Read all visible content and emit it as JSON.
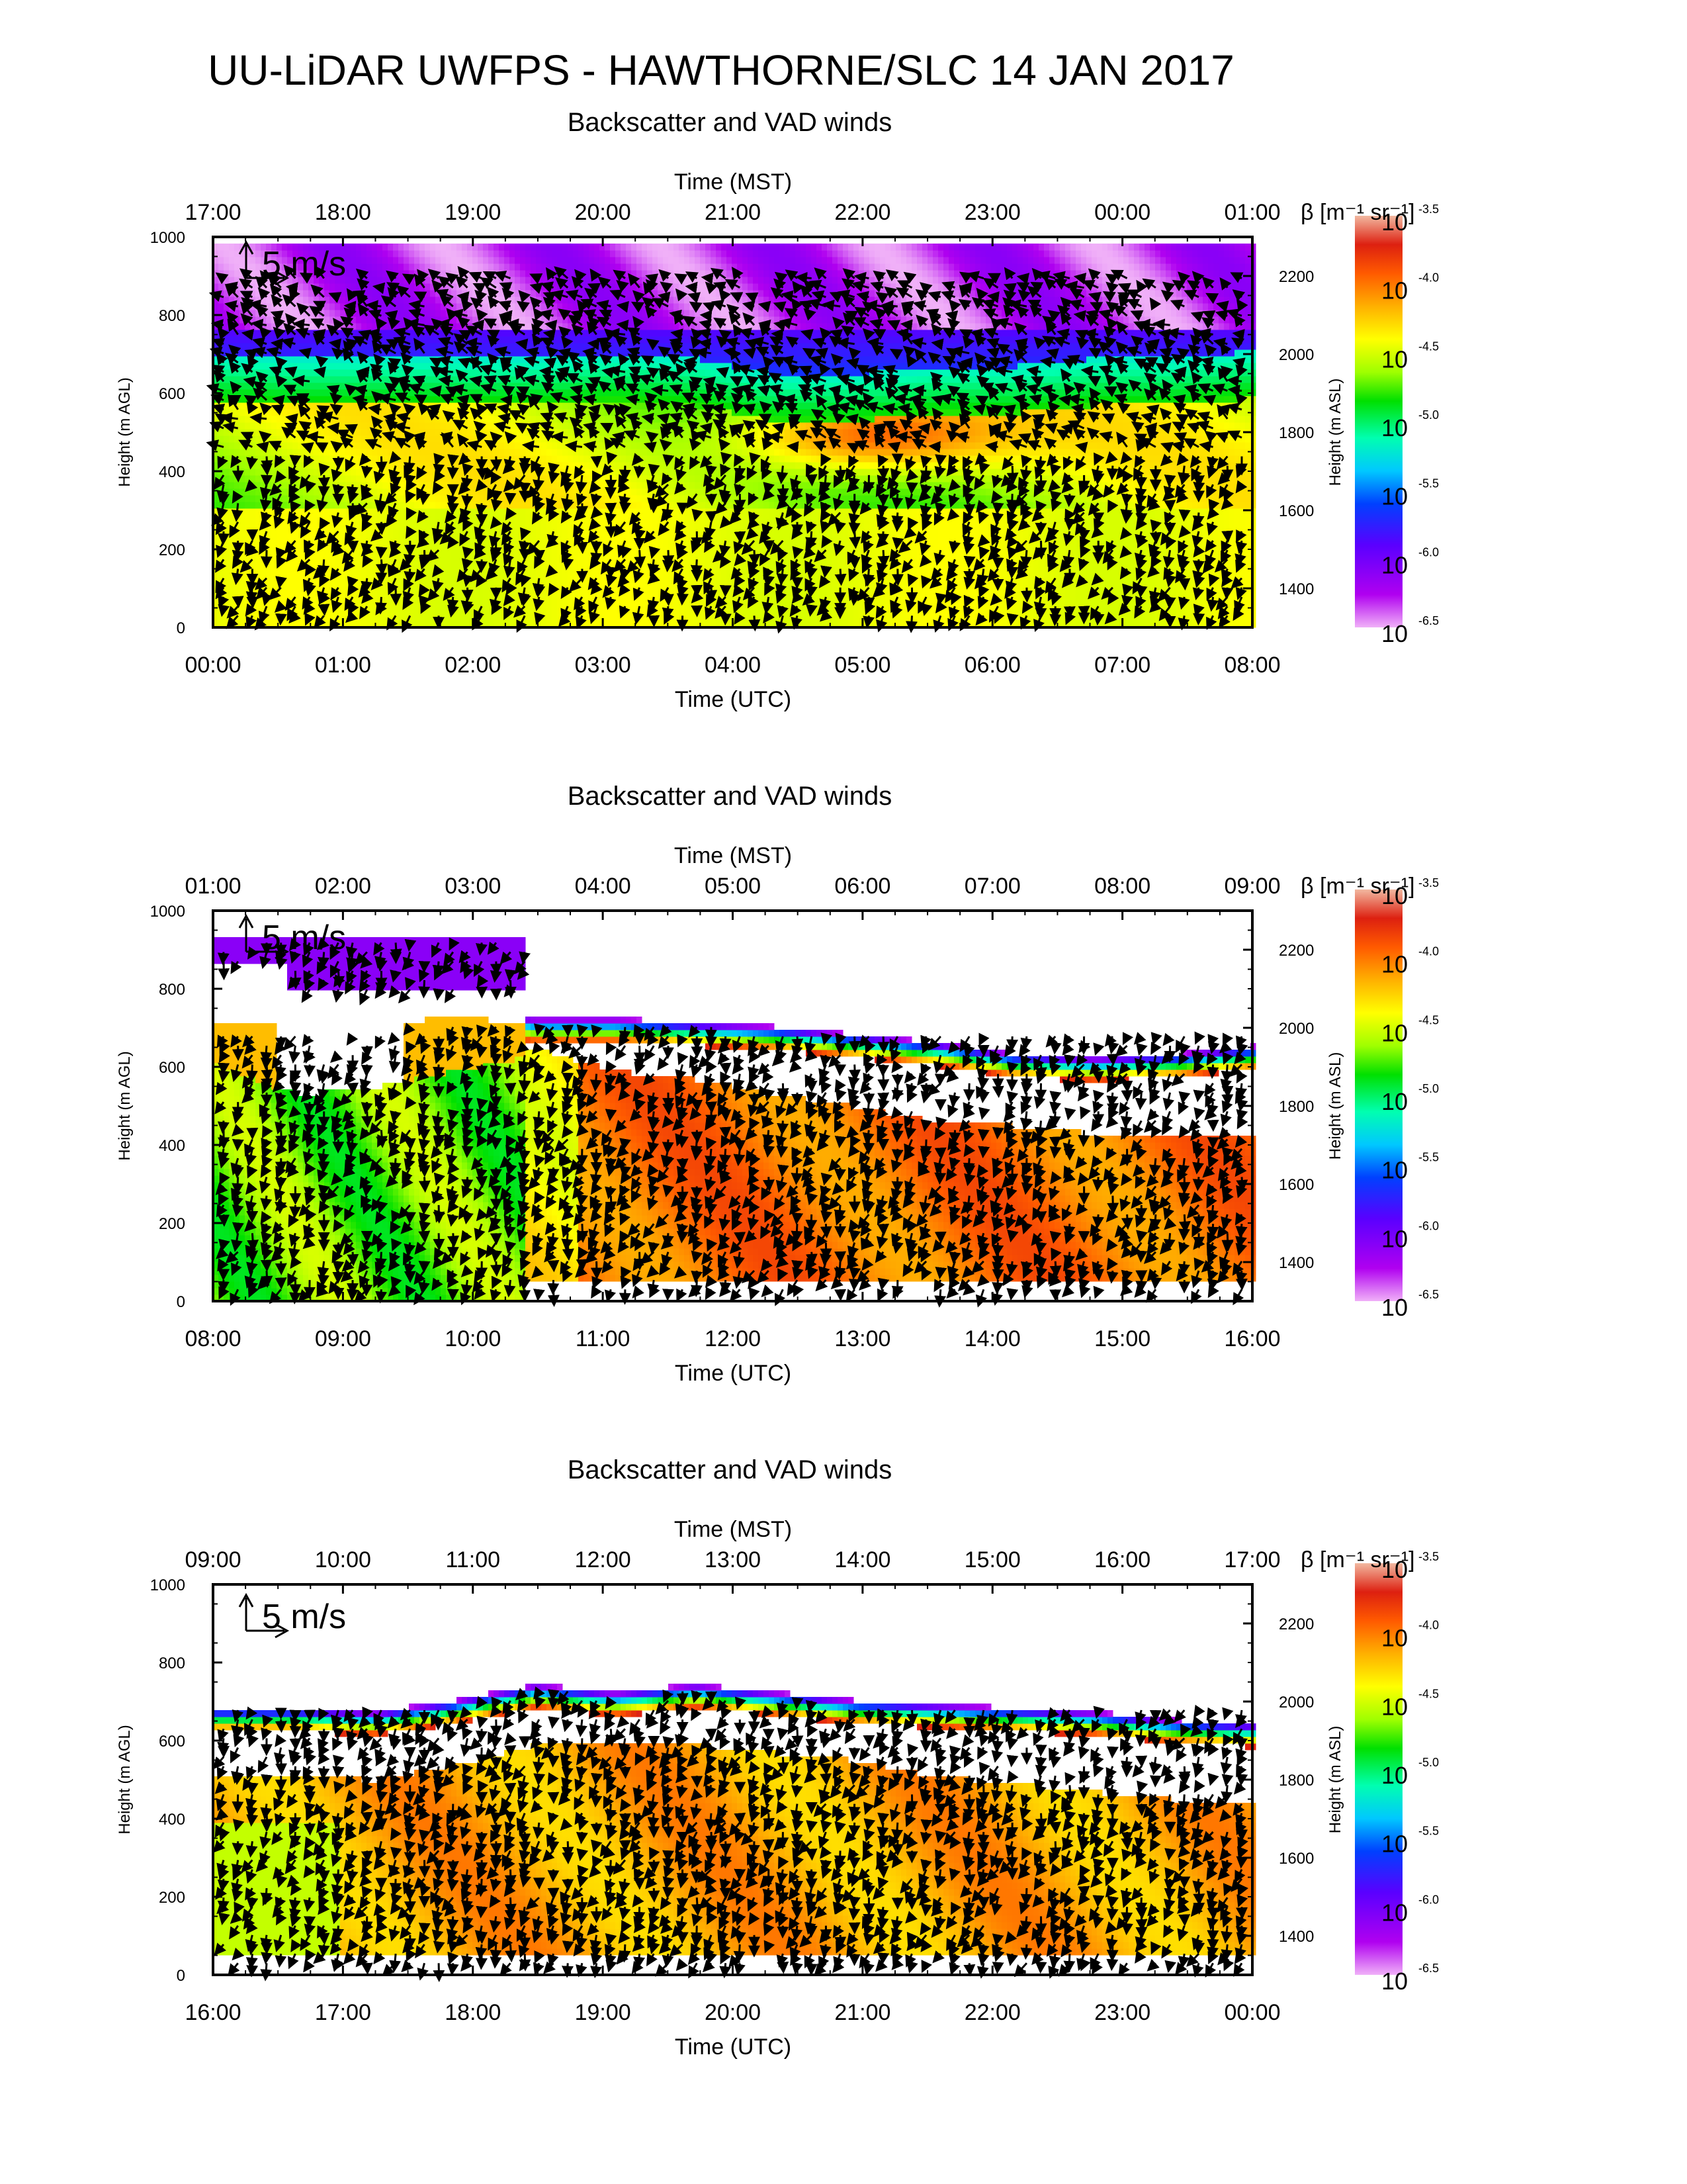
{
  "page": {
    "title": "UU-LiDAR UWFPS - HAWTHORNE/SLC 14 JAN 2017"
  },
  "colors": {
    "colorbar": [
      "#ee82ee",
      "#9400d3",
      "#6a00ff",
      "#0000ff",
      "#00c8ff",
      "#00ff80",
      "#00e000",
      "#7fff00",
      "#ffff00",
      "#ffa500",
      "#ff5a00",
      "#dd2200",
      "#f0a080"
    ],
    "arrow": "#000000"
  },
  "panels": [
    {
      "title": "Backscatter and VAD winds",
      "top_axis_label": "Time (MST)",
      "bottom_axis_label": "Time (UTC)",
      "left_axis_label": "Height (m AGL)",
      "right_axis_label": "Height (m ASL)",
      "top_ticks": [
        "17:00",
        "18:00",
        "19:00",
        "20:00",
        "21:00",
        "22:00",
        "23:00",
        "00:00",
        "01:00"
      ],
      "bottom_ticks": [
        "00:00",
        "01:00",
        "02:00",
        "03:00",
        "04:00",
        "05:00",
        "06:00",
        "07:00",
        "08:00"
      ],
      "left_ticks": [
        "0",
        "200",
        "400",
        "600",
        "800",
        "1000"
      ],
      "right_ticks": [
        "1400",
        "1600",
        "1800",
        "2000",
        "2200"
      ],
      "scale_label": "5 m/s",
      "colorbar_title": "β [m⁻¹ sr⁻¹]",
      "colorbar_ticks": [
        {
          "base": "10",
          "exp": "-3.5"
        },
        {
          "base": "10",
          "exp": "-4.0"
        },
        {
          "base": "10",
          "exp": "-4.5"
        },
        {
          "base": "10",
          "exp": "-5.0"
        },
        {
          "base": "10",
          "exp": "-5.5"
        },
        {
          "base": "10",
          "exp": "-6.0"
        },
        {
          "base": "10",
          "exp": "-6.5"
        }
      ]
    },
    {
      "title": "Backscatter and VAD winds",
      "top_axis_label": "Time (MST)",
      "bottom_axis_label": "Time (UTC)",
      "left_axis_label": "Height (m AGL)",
      "right_axis_label": "Height (m ASL)",
      "top_ticks": [
        "01:00",
        "02:00",
        "03:00",
        "04:00",
        "05:00",
        "06:00",
        "07:00",
        "08:00",
        "09:00"
      ],
      "bottom_ticks": [
        "08:00",
        "09:00",
        "10:00",
        "11:00",
        "12:00",
        "13:00",
        "14:00",
        "15:00",
        "16:00"
      ],
      "left_ticks": [
        "0",
        "200",
        "400",
        "600",
        "800",
        "1000"
      ],
      "right_ticks": [
        "1400",
        "1600",
        "1800",
        "2000",
        "2200"
      ],
      "scale_label": "5 m/s",
      "colorbar_title": "β [m⁻¹ sr⁻¹]",
      "colorbar_ticks": [
        {
          "base": "10",
          "exp": "-3.5"
        },
        {
          "base": "10",
          "exp": "-4.0"
        },
        {
          "base": "10",
          "exp": "-4.5"
        },
        {
          "base": "10",
          "exp": "-5.0"
        },
        {
          "base": "10",
          "exp": "-5.5"
        },
        {
          "base": "10",
          "exp": "-6.0"
        },
        {
          "base": "10",
          "exp": "-6.5"
        }
      ]
    },
    {
      "title": "Backscatter and VAD winds",
      "top_axis_label": "Time (MST)",
      "bottom_axis_label": "Time (UTC)",
      "left_axis_label": "Height (m AGL)",
      "right_axis_label": "Height (m ASL)",
      "top_ticks": [
        "09:00",
        "10:00",
        "11:00",
        "12:00",
        "13:00",
        "14:00",
        "15:00",
        "16:00",
        "17:00"
      ],
      "bottom_ticks": [
        "16:00",
        "17:00",
        "18:00",
        "19:00",
        "20:00",
        "21:00",
        "22:00",
        "23:00",
        "00:00"
      ],
      "left_ticks": [
        "0",
        "200",
        "400",
        "600",
        "800",
        "1000"
      ],
      "right_ticks": [
        "1400",
        "1600",
        "1800",
        "2000",
        "2200"
      ],
      "scale_label": "5 m/s",
      "colorbar_title": "β [m⁻¹ sr⁻¹]",
      "colorbar_ticks": [
        {
          "base": "10",
          "exp": "-3.5"
        },
        {
          "base": "10",
          "exp": "-4.0"
        },
        {
          "base": "10",
          "exp": "-4.5"
        },
        {
          "base": "10",
          "exp": "-5.0"
        },
        {
          "base": "10",
          "exp": "-5.5"
        },
        {
          "base": "10",
          "exp": "-6.0"
        },
        {
          "base": "10",
          "exp": "-6.5"
        }
      ]
    }
  ],
  "chart_data": [
    {
      "type": "heatmap",
      "title": "Backscatter and VAD winds",
      "xlabel": "Time (UTC)",
      "x2label": "Time (MST)",
      "ylabel": "Height (m AGL)",
      "y2label": "Height (m ASL)",
      "xlim_utc": [
        "00:00",
        "08:00"
      ],
      "xlim_mst": [
        "17:00",
        "01:00"
      ],
      "ylim": [
        0,
        1000
      ],
      "y2lim": [
        1300,
        2300
      ],
      "colorbar": {
        "label": "β [m⁻¹ sr⁻¹]",
        "range_log10": [
          -6.5,
          -3.5
        ]
      },
      "vector_scale": "5 m/s",
      "mixed_layer_top_m": [
        570,
        560,
        560,
        560,
        560,
        570,
        560,
        520,
        520,
        540,
        540,
        560,
        560,
        580
      ],
      "features": "mixed layer log10(beta) ~ -4.7 below ~500 m AGL, maximum near 05:00 UTC ~ -3.9 at ~520 m; purple low backscatter above ~750 m"
    },
    {
      "type": "heatmap",
      "title": "Backscatter and VAD winds",
      "xlabel": "Time (UTC)",
      "x2label": "Time (MST)",
      "ylabel": "Height (m AGL)",
      "y2label": "Height (m ASL)",
      "xlim_utc": [
        "08:00",
        "16:00"
      ],
      "xlim_mst": [
        "01:00",
        "09:00"
      ],
      "ylim": [
        0,
        1000
      ],
      "y2lim": [
        1300,
        2300
      ],
      "colorbar": {
        "label": "β [m⁻¹ sr⁻¹]",
        "range_log10": [
          -6.5,
          -3.5
        ]
      },
      "vector_scale": "5 m/s",
      "cloud_top_m": [
        700,
        700,
        700,
        720,
        700,
        700,
        690,
        680,
        660,
        640,
        610,
        600,
        610,
        630
      ],
      "aerosol_top_m": [
        600,
        520,
        540,
        580,
        620,
        560,
        540,
        500,
        470,
        430,
        420,
        400,
        400,
        400
      ],
      "features": "strong layer log10(beta) ~ -4.0 below aerosol top, clear gap beneath capping cloud band"
    },
    {
      "type": "heatmap",
      "title": "Backscatter and VAD winds",
      "xlabel": "Time (UTC)",
      "x2label": "Time (MST)",
      "ylabel": "Height (m AGL)",
      "y2label": "Height (m ASL)",
      "xlim_utc": [
        "16:00",
        "00:00"
      ],
      "xlim_mst": [
        "09:00",
        "17:00"
      ],
      "ylim": [
        0,
        1000
      ],
      "y2lim": [
        1300,
        2300
      ],
      "colorbar": {
        "label": "β [m⁻¹ sr⁻¹]",
        "range_log10": [
          -6.5,
          -3.5
        ]
      },
      "vector_scale": "5 m/s",
      "cloud_top_m": [
        660,
        660,
        650,
        680,
        720,
        700,
        720,
        700,
        680,
        670,
        660,
        650,
        630,
        620
      ],
      "aerosol_top_m": [
        480,
        480,
        470,
        510,
        560,
        560,
        560,
        540,
        520,
        480,
        460,
        440,
        420,
        410
      ],
      "features": "orange/red layer log10(beta) ~ -4.2 below ~500 m AGL, thin cloud band near 650 m"
    }
  ]
}
